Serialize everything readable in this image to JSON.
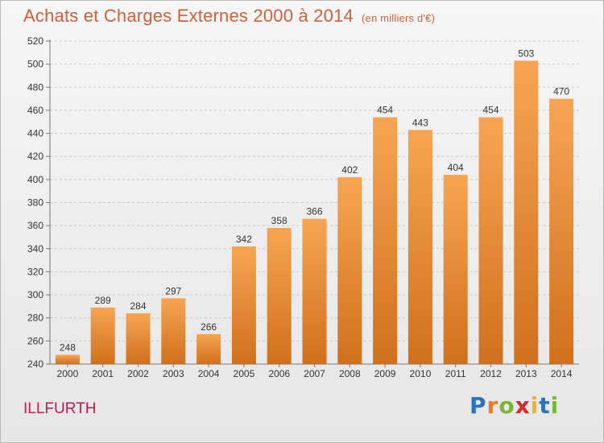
{
  "header": {
    "title": "Achats et Charges Externes 2000 à 2014",
    "unit": "(en milliers d'€)"
  },
  "footer": {
    "commune": "ILLFURTH",
    "logo_text": "Proxiti"
  },
  "colors": {
    "title": "#d0603a",
    "commune": "#c8184e",
    "bar_top": "#f7a552",
    "bar_bottom": "#d0701c",
    "grid": "#c8c8c8"
  },
  "chart_data": {
    "type": "bar",
    "title": "Achats et Charges Externes 2000 à 2014",
    "xlabel": "",
    "ylabel": "",
    "ylim": [
      240,
      520
    ],
    "ytick_step": 20,
    "grid": true,
    "categories": [
      "2000",
      "2001",
      "2002",
      "2003",
      "2004",
      "2005",
      "2006",
      "2007",
      "2008",
      "2009",
      "2010",
      "2011",
      "2012",
      "2013",
      "2014"
    ],
    "values": [
      248,
      289,
      284,
      297,
      266,
      342,
      358,
      366,
      402,
      454,
      443,
      404,
      454,
      503,
      470
    ]
  }
}
